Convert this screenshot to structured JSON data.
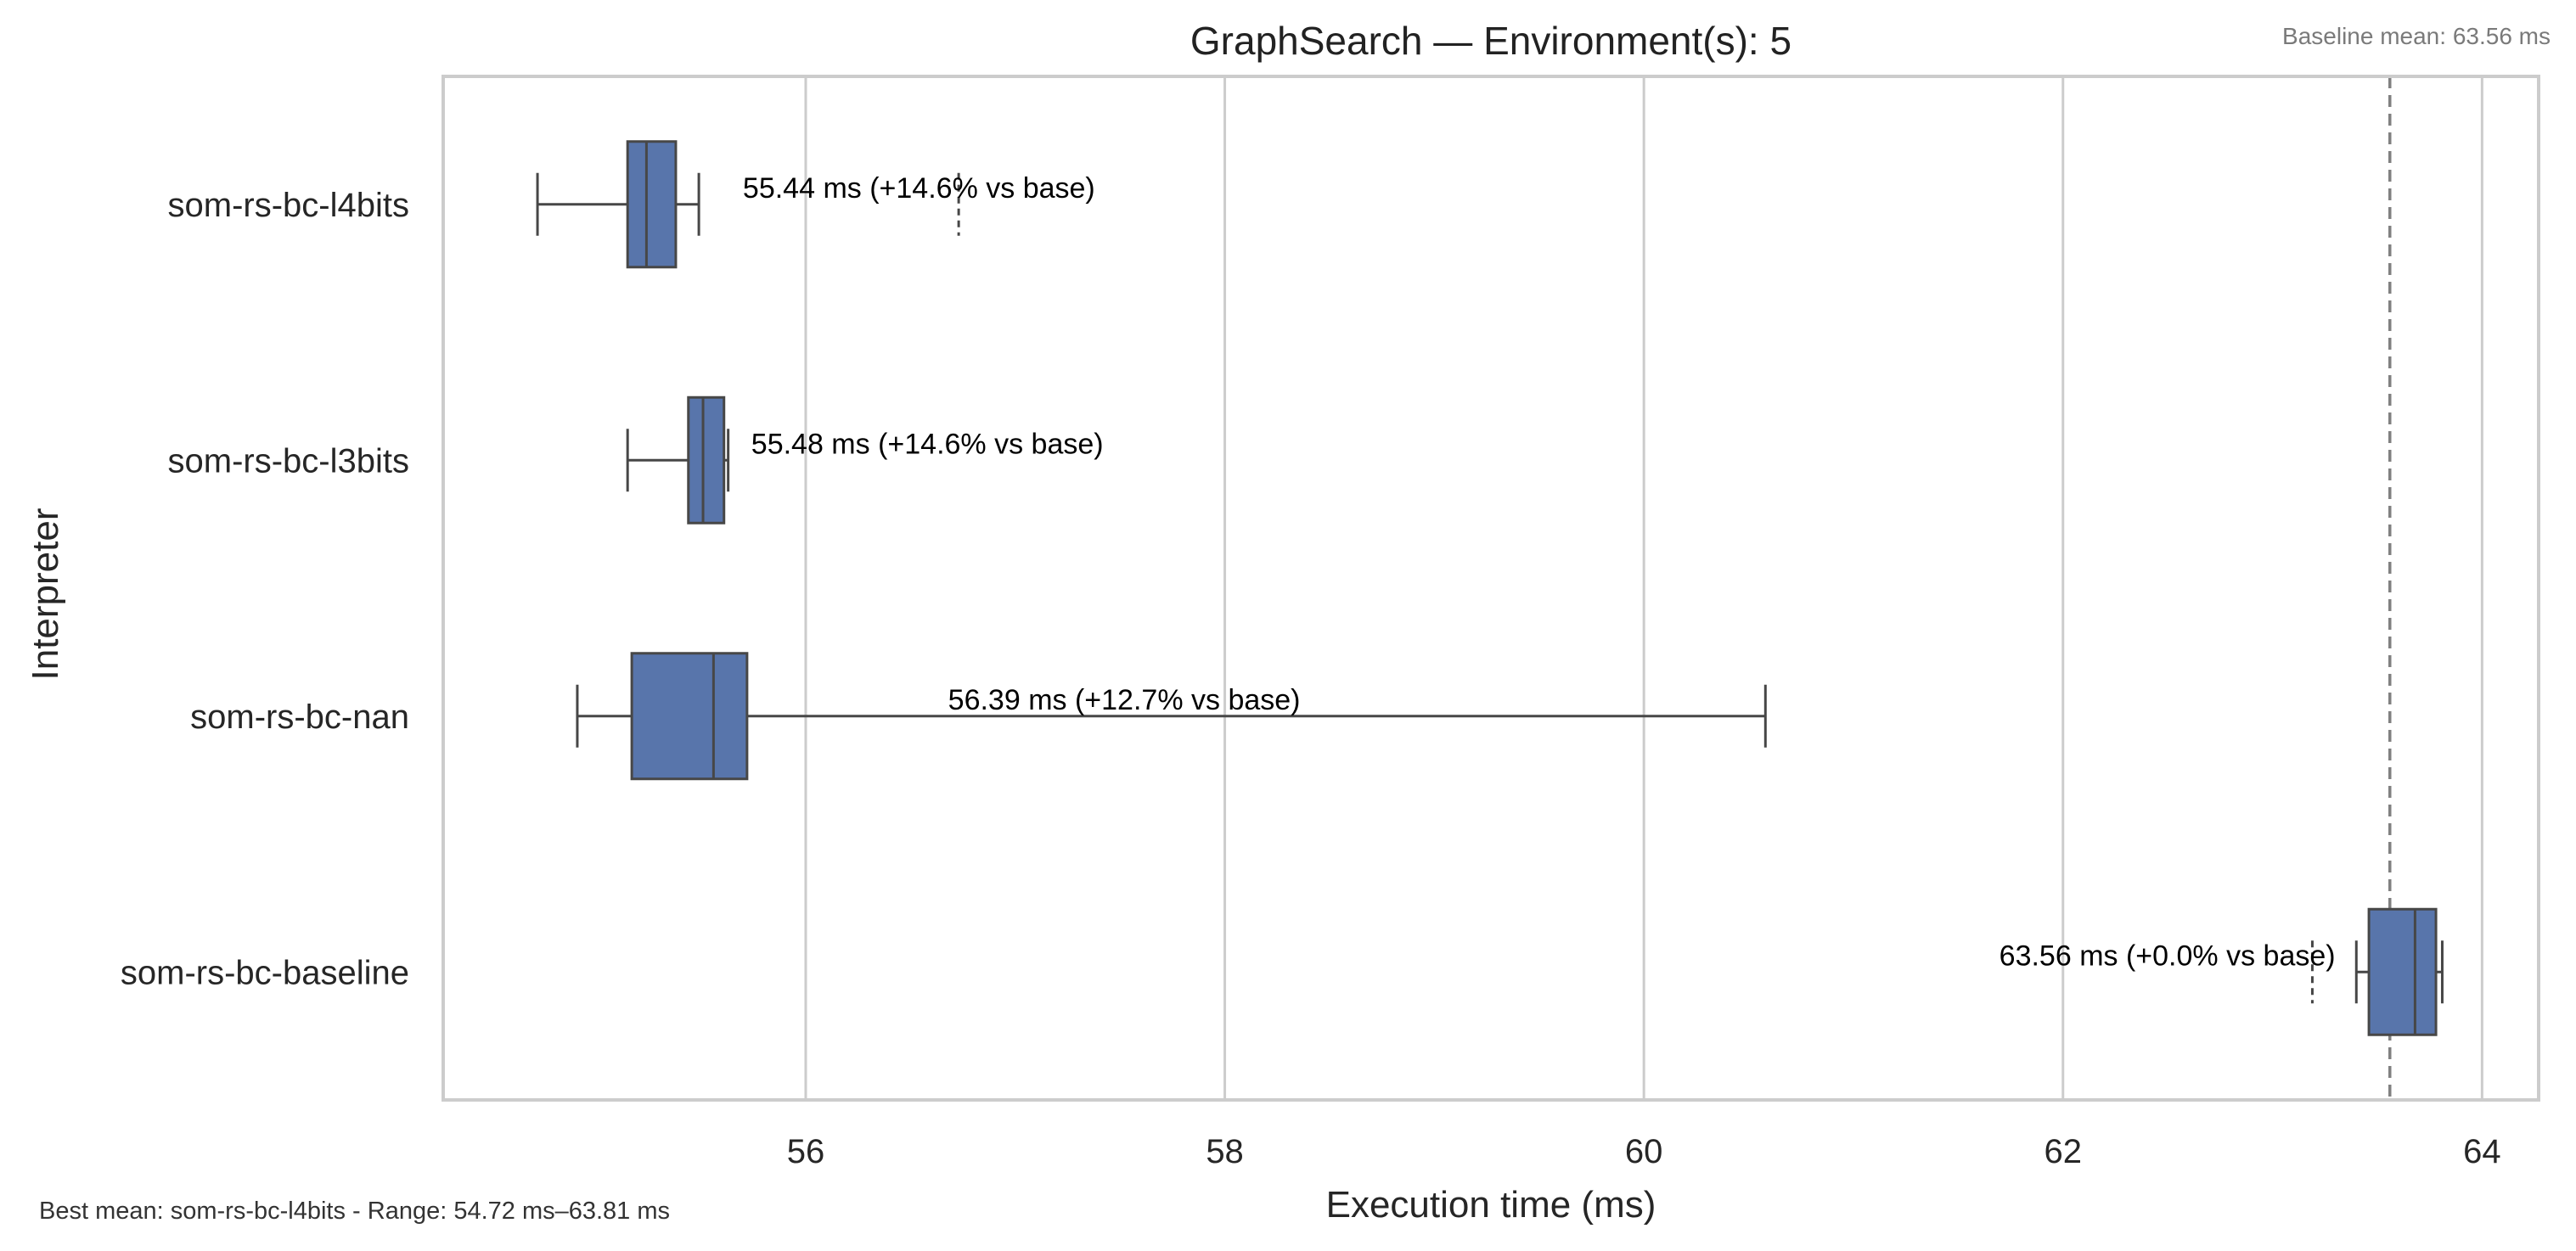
{
  "chart_data": {
    "type": "box",
    "orientation": "horizontal",
    "title": "GraphSearch — Environment(s): 5",
    "xlabel": "Execution time (ms)",
    "ylabel": "Interpreter",
    "xlim": [
      54.27,
      64.27
    ],
    "xticks": [
      56,
      58,
      60,
      62,
      64
    ],
    "grid": "vertical",
    "categories": [
      "som-rs-bc-l4bits",
      "som-rs-bc-l3bits",
      "som-rs-bc-nan",
      "som-rs-bc-baseline"
    ],
    "boxes": [
      {
        "whisker_low": 54.72,
        "q1": 55.15,
        "median": 55.24,
        "q3": 55.38,
        "whisker_high": 55.49,
        "outliers": [
          56.73
        ]
      },
      {
        "whisker_low": 55.15,
        "q1": 55.44,
        "median": 55.51,
        "q3": 55.61,
        "whisker_high": 55.63,
        "outliers": []
      },
      {
        "whisker_low": 54.91,
        "q1": 55.17,
        "median": 55.56,
        "q3": 55.72,
        "whisker_high": 60.58,
        "outliers": []
      },
      {
        "whisker_low": 63.4,
        "q1": 63.46,
        "median": 63.68,
        "q3": 63.78,
        "whisker_high": 63.81,
        "outliers": [
          63.19
        ]
      }
    ],
    "annotations": [
      {
        "text": "55.44 ms  (+14.6% vs base)",
        "anchor": "start",
        "x": 55.7
      },
      {
        "text": "55.48 ms  (+14.6% vs base)",
        "anchor": "start",
        "x": 55.74
      },
      {
        "text": "56.39 ms  (+12.7% vs base)",
        "anchor": "middle",
        "x": 57.52
      },
      {
        "text": "63.56 ms  (+0.0% vs base)",
        "anchor": "end",
        "x": 63.3
      }
    ],
    "reference_line": {
      "value": 63.56,
      "label": "Baseline mean: 63.56 ms",
      "style": "dashed"
    },
    "box_color": "#5875ab",
    "line_color": "#474747",
    "grid_color": "#cccccc",
    "frame_color": "#cccccc",
    "ref_line_color": "#808080"
  },
  "footer": "Best mean: som-rs-bc-l4bits - Range: 54.72 ms–63.81 ms"
}
